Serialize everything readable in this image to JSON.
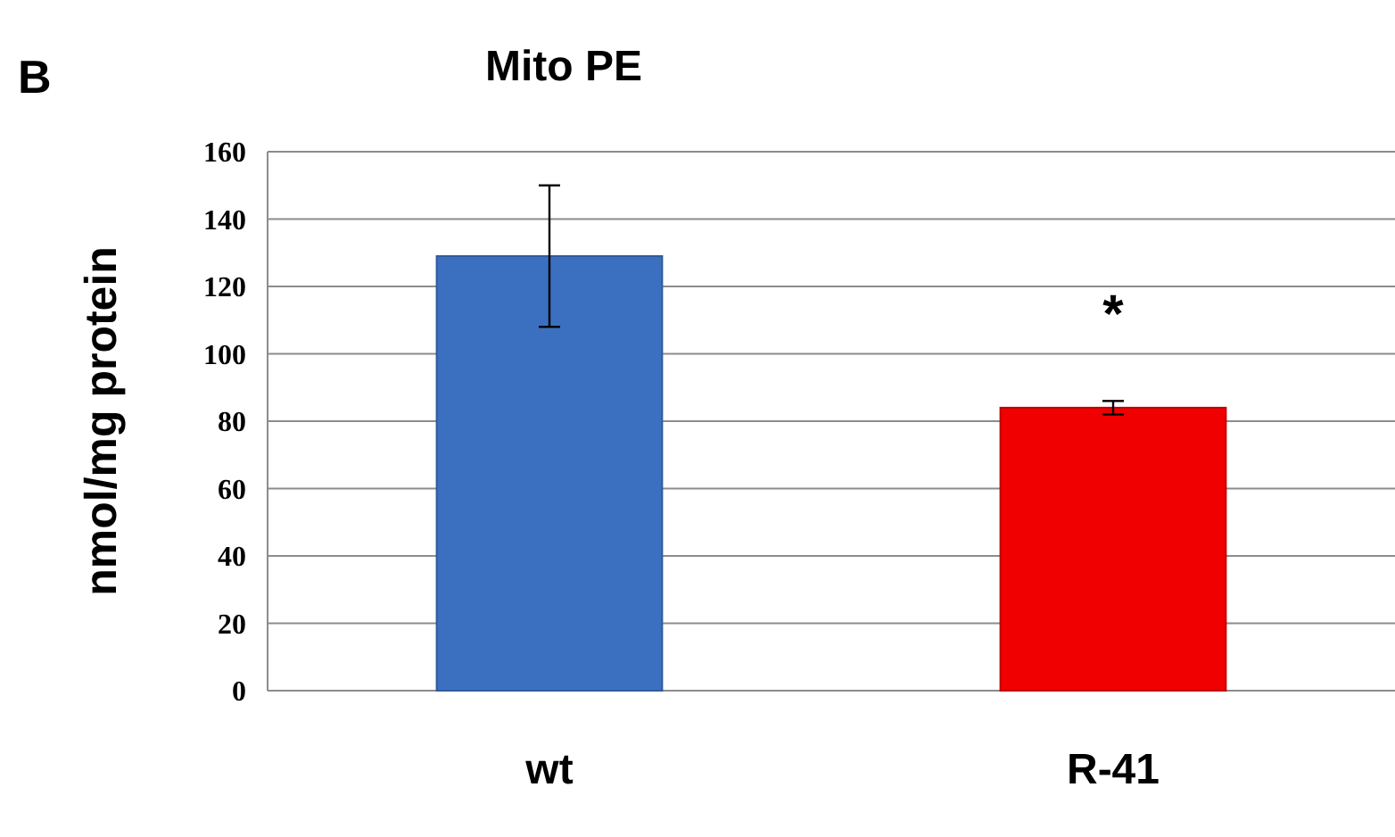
{
  "chart_data": {
    "type": "bar",
    "title": "Mito PE",
    "ylabel": "nmol/mg protein",
    "categories": [
      "wt",
      "R-41"
    ],
    "values": [
      129,
      84
    ],
    "colors": [
      "#3b70c0",
      "#f00000"
    ],
    "errors": [
      21,
      2
    ],
    "ylim": [
      0,
      160
    ],
    "yticks": [
      0,
      20,
      40,
      60,
      80,
      100,
      120,
      140,
      160
    ],
    "grid": "y",
    "annotations": [
      "B",
      "*"
    ]
  }
}
